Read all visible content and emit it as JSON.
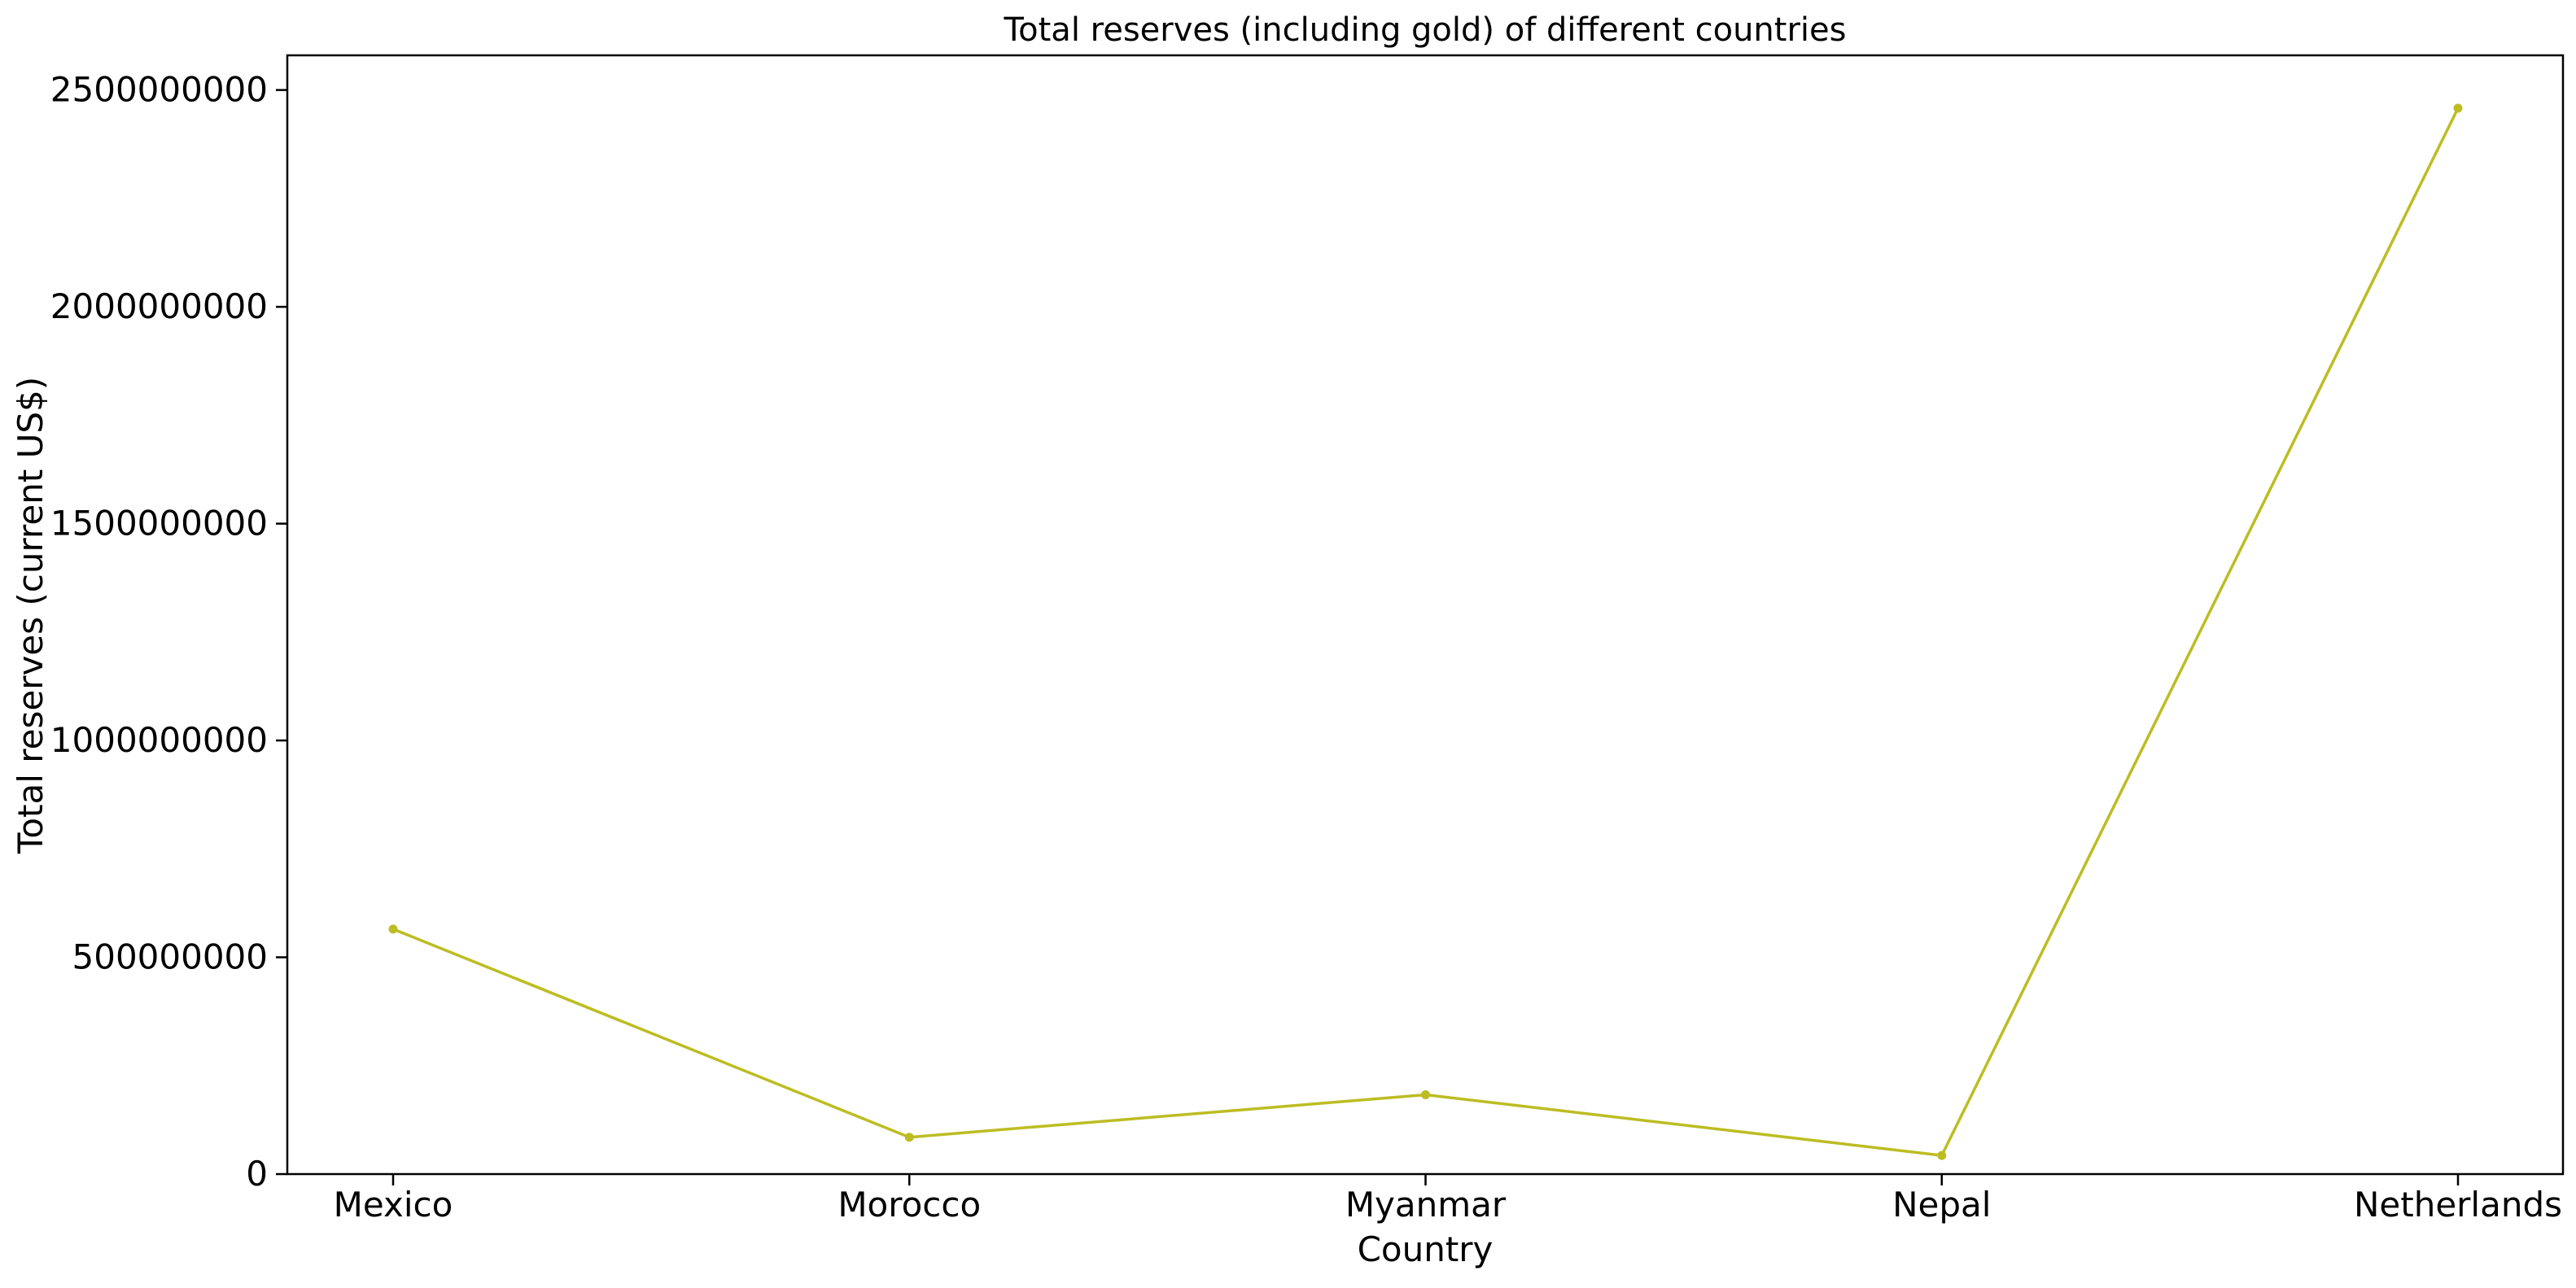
{
  "chart_data": {
    "type": "line",
    "title": "Total reserves (including gold) of different countries",
    "xlabel": "Country",
    "ylabel": "Total reserves (current US$)",
    "categories": [
      "Mexico",
      "Morocco",
      "Myanmar",
      "Nepal",
      "Netherlands"
    ],
    "series": [
      {
        "values": [
          565000000,
          85000000,
          183000000,
          43000000,
          2458000000
        ],
        "color": "#bcbd22"
      }
    ],
    "ylim": [
      0,
      2580000000
    ],
    "yticks": [
      0,
      500000000,
      1000000000,
      1500000000,
      2000000000,
      2500000000
    ],
    "ytick_labels": [
      "0",
      "500000000",
      "1000000000",
      "1500000000",
      "2000000000",
      "2500000000"
    ],
    "grid": false,
    "legend": "none"
  }
}
